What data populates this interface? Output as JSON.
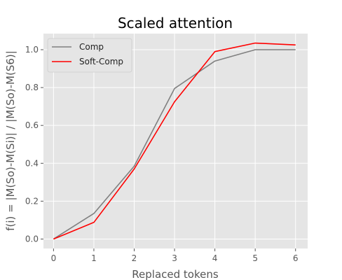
{
  "chart_data": {
    "type": "line",
    "title": "Scaled attention",
    "xlabel": "Replaced tokens",
    "ylabel": "f(i) = |M(So)-M(Si)| / |M(So)-M(S6)|",
    "x": [
      0,
      1,
      2,
      3,
      4,
      5,
      6
    ],
    "xticks": [
      "0",
      "1",
      "2",
      "3",
      "4",
      "5",
      "6"
    ],
    "yticks": [
      "0.0",
      "0.2",
      "0.4",
      "0.6",
      "0.8",
      "1.0"
    ],
    "xlim": [
      -0.25,
      6.3
    ],
    "ylim": [
      -0.05,
      1.085
    ],
    "grid": true,
    "legend": "top-left",
    "series": [
      {
        "name": "Comp",
        "color": "#808080",
        "values": [
          0.0,
          0.135,
          0.385,
          0.795,
          0.94,
          1.0,
          1.0
        ]
      },
      {
        "name": "Soft-Comp",
        "color": "#ff0000",
        "values": [
          0.0,
          0.088,
          0.37,
          0.725,
          0.99,
          1.035,
          1.025
        ]
      }
    ]
  }
}
